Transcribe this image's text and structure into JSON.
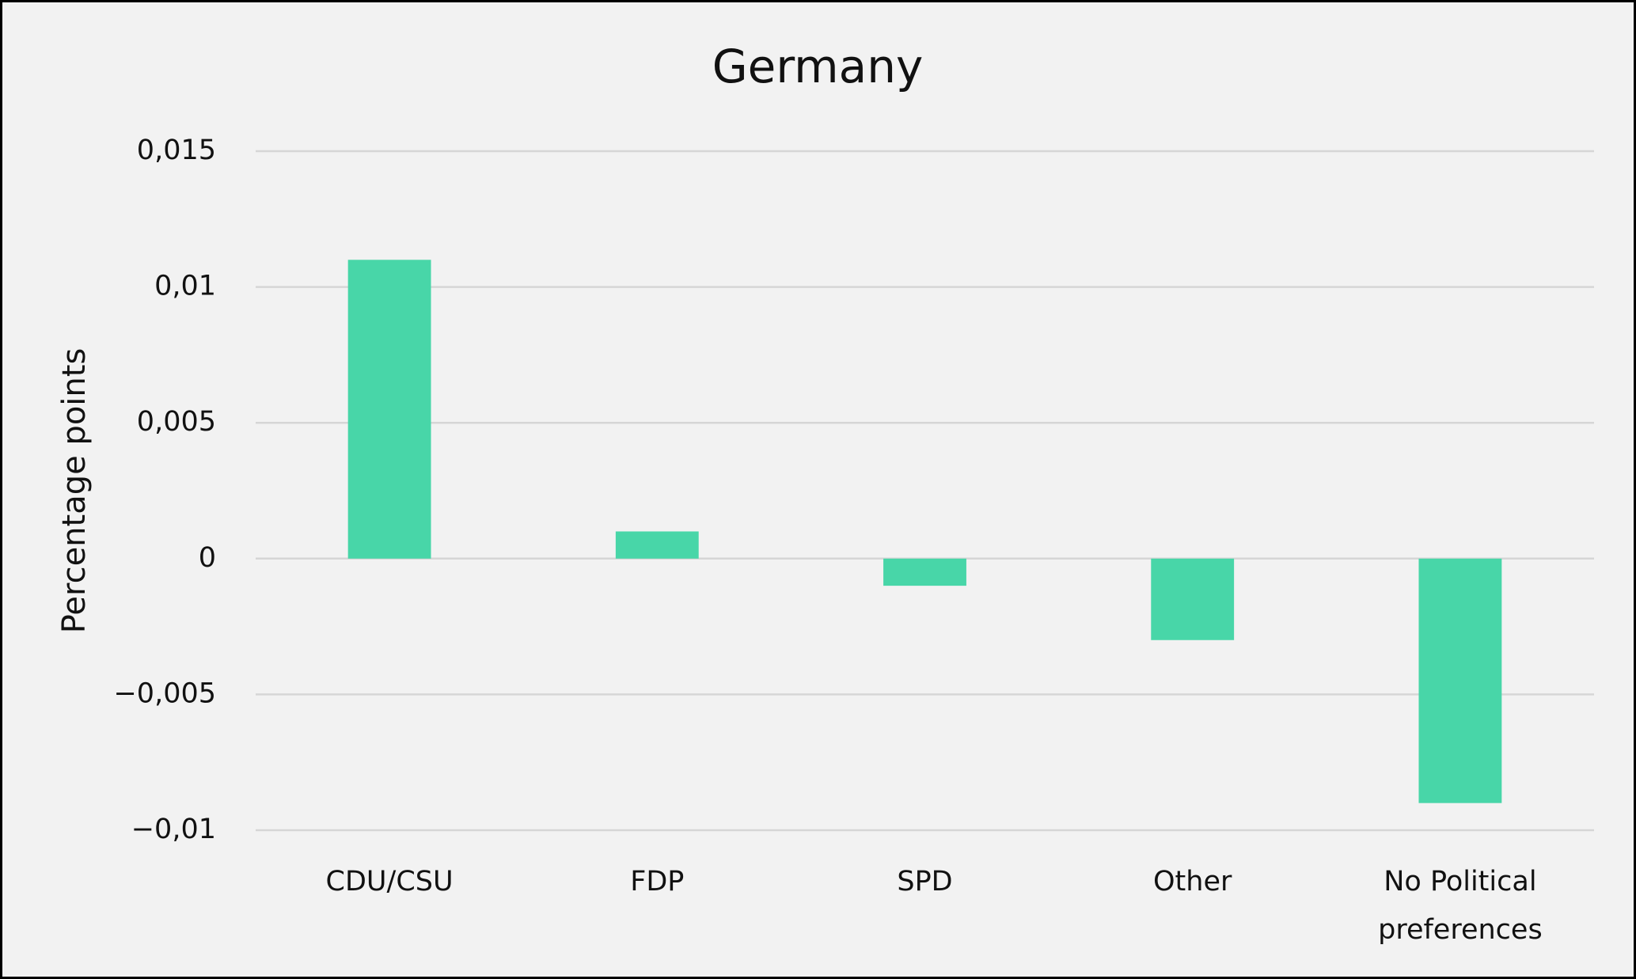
{
  "chart_data": {
    "type": "bar",
    "title": "Germany",
    "y_label": "Percentage points",
    "categories": [
      "CDU/CSU",
      "FDP",
      "SPD",
      "Other",
      "No Political preferences"
    ],
    "values": [
      0.011,
      0.001,
      -0.001,
      -0.003,
      -0.009
    ],
    "color": "#48d6a8",
    "ylim": [
      -0.01,
      0.015
    ],
    "yticks": [
      {
        "value": -0.01,
        "label": "−0,01"
      },
      {
        "value": -0.005,
        "label": "−0,005"
      },
      0,
      {
        "value": 0.005,
        "label": "0,005"
      },
      {
        "value": 0.01,
        "label": "0,01"
      },
      {
        "value": 0.015,
        "label": "0,015"
      }
    ],
    "grid": true
  }
}
